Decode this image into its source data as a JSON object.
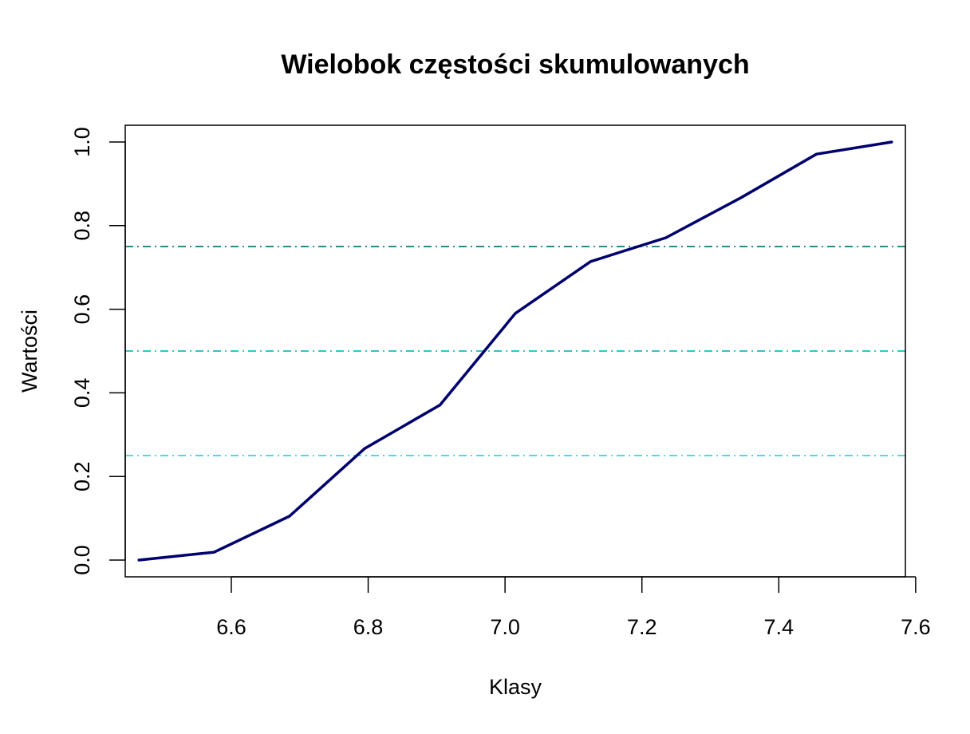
{
  "chart_data": {
    "type": "line",
    "title": "Wielobok częstości skumulowanych",
    "xlabel": "Klasy",
    "ylabel": "Wartości",
    "xlim": [
      6.445,
      7.585
    ],
    "ylim": [
      -0.04,
      1.04
    ],
    "x_ticks": [
      6.6,
      6.8,
      7.0,
      7.2,
      7.4,
      7.6
    ],
    "x_tick_labels": [
      "6.6",
      "6.8",
      "7.0",
      "7.2",
      "7.4",
      "7.6"
    ],
    "y_ticks": [
      0.0,
      0.2,
      0.4,
      0.6,
      0.8,
      1.0
    ],
    "y_tick_labels": [
      "0.0",
      "0.2",
      "0.4",
      "0.6",
      "0.8",
      "1.0"
    ],
    "grid": false,
    "series": [
      {
        "color": "#00006e",
        "x": [
          6.465,
          6.575,
          6.685,
          6.795,
          6.905,
          7.015,
          7.125,
          7.235,
          7.345,
          7.455,
          7.565
        ],
        "y": [
          0.0,
          0.019,
          0.105,
          0.267,
          0.371,
          0.59,
          0.714,
          0.771,
          0.867,
          0.971,
          1.0
        ]
      }
    ],
    "reference_lines": [
      {
        "y": 0.25,
        "color": "#40e0e6",
        "style": "dotdash"
      },
      {
        "y": 0.5,
        "color": "#2ec8c2",
        "style": "dotdash"
      },
      {
        "y": 0.75,
        "color": "#2a8a8a",
        "style": "dotdash"
      }
    ]
  }
}
